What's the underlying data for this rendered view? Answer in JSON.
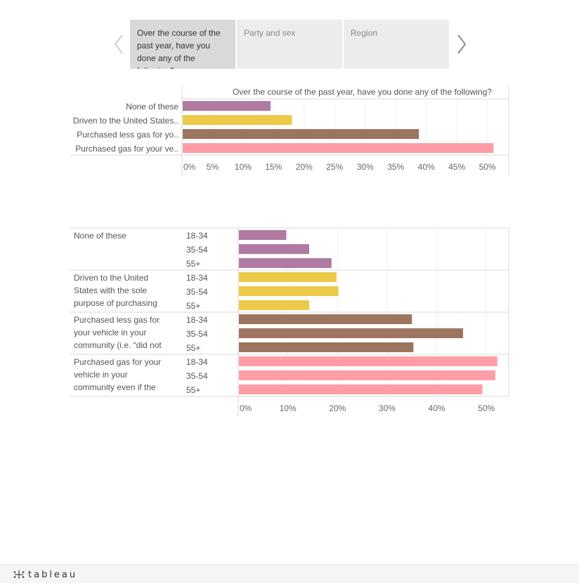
{
  "nav": {
    "tabs": [
      {
        "label": "Over the course of the past year, have you done any of the following?",
        "active": true
      },
      {
        "label": "Party and sex",
        "active": false
      },
      {
        "label": "Region",
        "active": false
      }
    ]
  },
  "chart_data": [
    {
      "type": "bar",
      "orientation": "horizontal",
      "title": "Over the course of the past year, have you done any of the following?",
      "categories": [
        "None of these",
        "Driven to the United States..",
        "Purchased less gas for yo..",
        "Purchased gas for your ve.."
      ],
      "values": [
        0.145,
        0.18,
        0.388,
        0.51
      ],
      "colors": [
        "#b07aa1",
        "#edc948",
        "#9c755f",
        "#ff9da7"
      ],
      "xlim": [
        0,
        0.535
      ],
      "xticks": [
        0,
        0.05,
        0.1,
        0.15,
        0.2,
        0.25,
        0.3,
        0.35,
        0.4,
        0.45,
        0.5
      ],
      "xtick_labels": [
        "0%",
        "5%",
        "10%",
        "15%",
        "20%",
        "25%",
        "30%",
        "35%",
        "40%",
        "45%",
        "50%"
      ],
      "grid": true
    },
    {
      "type": "bar",
      "orientation": "horizontal",
      "groups": [
        {
          "label": "None of these",
          "color": "#b07aa1"
        },
        {
          "label": "Driven to the United States with the sole purpose of purchasing cheaper gas fo..",
          "color": "#edc948"
        },
        {
          "label": "Purchased less gas for your vehicle in your community (i.e. “did not fill up the ent..",
          "color": "#9c755f"
        },
        {
          "label": "Purchased gas for your vehicle in your community even if the tank was not n..",
          "color": "#ff9da7"
        }
      ],
      "subcategories": [
        "18-34",
        "35-54",
        "55+"
      ],
      "values": [
        [
          0.097,
          0.143,
          0.188
        ],
        [
          0.198,
          0.202,
          0.143
        ],
        [
          0.35,
          0.453,
          0.353
        ],
        [
          0.522,
          0.518,
          0.492
        ]
      ],
      "xlim": [
        0,
        0.545
      ],
      "xticks": [
        0,
        0.1,
        0.2,
        0.3,
        0.4,
        0.5
      ],
      "xtick_labels": [
        "0%",
        "10%",
        "20%",
        "30%",
        "40%",
        "50%"
      ],
      "grid": true
    }
  ],
  "footer": {
    "logo_text": "tableau"
  }
}
